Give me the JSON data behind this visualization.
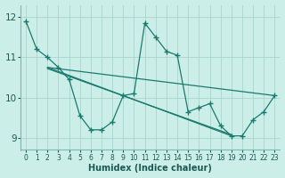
{
  "xlabel": "Humidex (Indice chaleur)",
  "bg_color": "#cceee8",
  "grid_color": "#aad4cc",
  "line_color": "#1a7a6e",
  "xlim": [
    -0.5,
    23.5
  ],
  "ylim": [
    8.7,
    12.3
  ],
  "yticks": [
    9,
    10,
    11,
    12
  ],
  "xticks": [
    0,
    1,
    2,
    3,
    4,
    5,
    6,
    7,
    8,
    9,
    10,
    11,
    12,
    13,
    14,
    15,
    16,
    17,
    18,
    19,
    20,
    21,
    22,
    23
  ],
  "series1_x": [
    0,
    1,
    2,
    3,
    4,
    5,
    6,
    7,
    8,
    9,
    10,
    11,
    12,
    13,
    14,
    15,
    16,
    17,
    18,
    19,
    20,
    21,
    22,
    23
  ],
  "series1_y": [
    11.9,
    11.2,
    11.0,
    10.75,
    10.45,
    9.55,
    9.2,
    9.2,
    9.4,
    10.05,
    10.1,
    11.85,
    11.5,
    11.15,
    11.05,
    9.65,
    9.75,
    9.85,
    9.3,
    9.05,
    9.05,
    9.45,
    9.65,
    10.05
  ],
  "trend1_x": [
    2,
    23
  ],
  "trend1_y": [
    10.75,
    10.05
  ],
  "trend2_x": [
    2,
    19
  ],
  "trend2_y": [
    10.75,
    9.05
  ],
  "trend3_x": [
    2,
    19
  ],
  "trend3_y": [
    10.72,
    9.08
  ]
}
